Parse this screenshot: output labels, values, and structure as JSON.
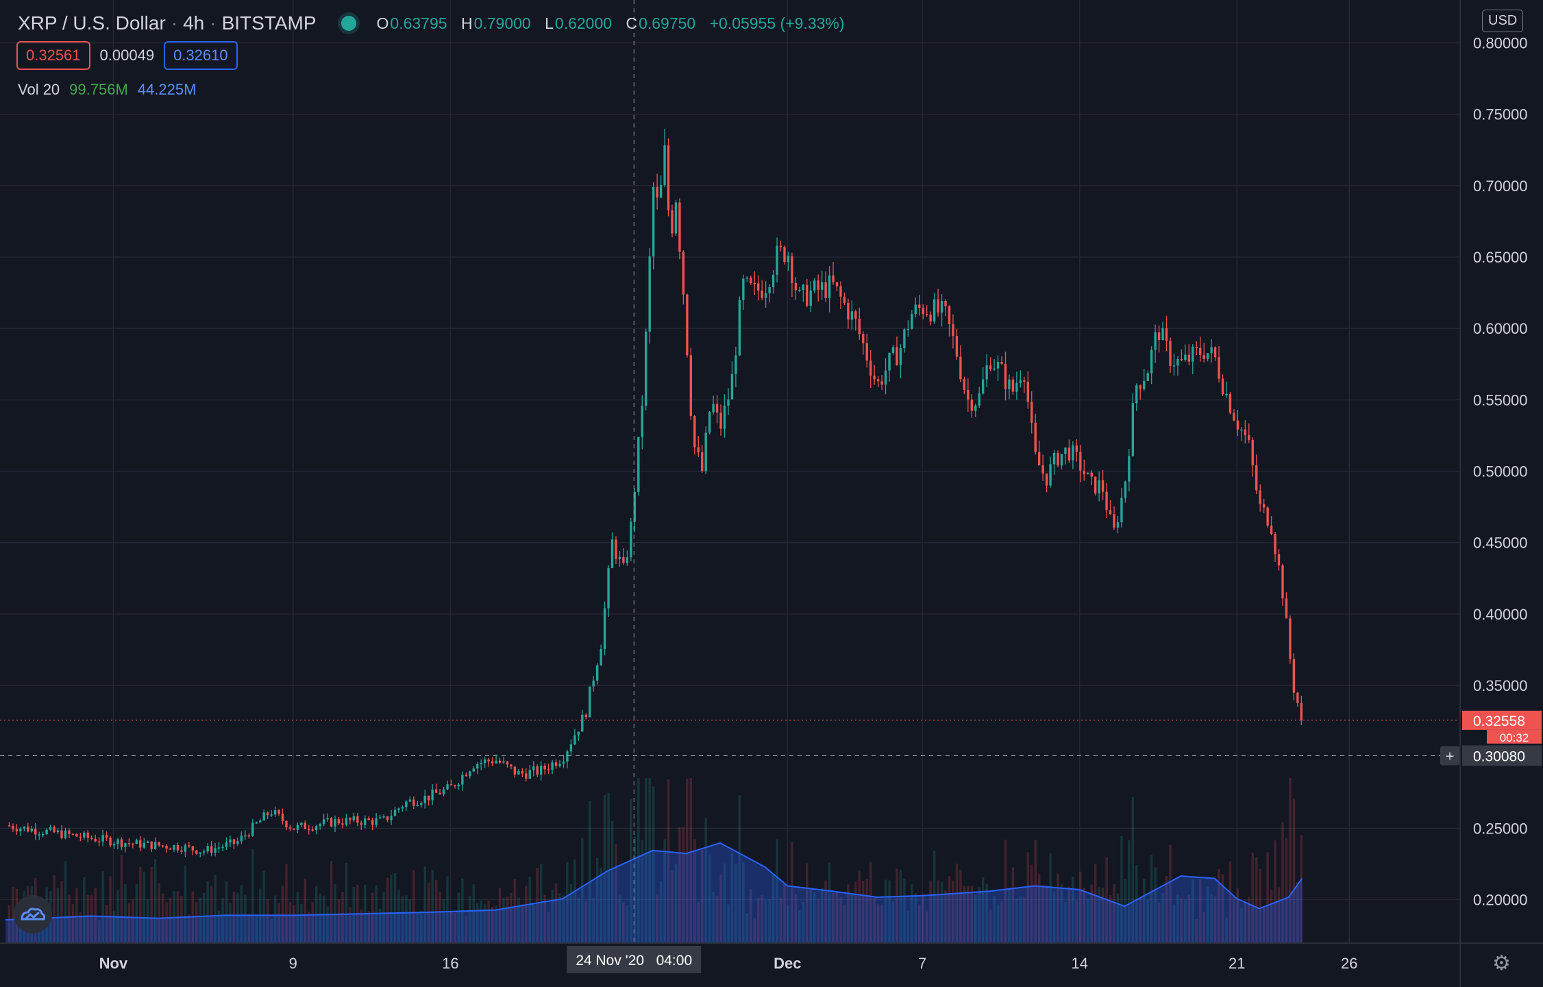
{
  "header": {
    "symbol": "XRP / U.S. Dollar",
    "interval": "4h",
    "exchange": "BITSTAMP",
    "open_label": "O",
    "open_value": "0.63795",
    "high_label": "H",
    "high_value": "0.79000",
    "low_label": "L",
    "low_value": "0.62000",
    "close_label": "C",
    "close_value": "0.69750",
    "change": "+0.05955 (+9.33%)"
  },
  "trade": {
    "sell": "0.32561",
    "spread": "0.00049",
    "buy": "0.32610"
  },
  "volume_legend": {
    "label": "Vol 20",
    "value_green": "99.756M",
    "value_blue": "44.225M"
  },
  "currency_button": "USD",
  "price_labels": {
    "last": "0.32558",
    "countdown": "00:32",
    "crosshair": "0.30080",
    "crosshair_plus": "+"
  },
  "crosshair_time_label": "24 Nov '20   04:00",
  "icons": {
    "logo": "tradingview-logo-icon",
    "settings": "gear-icon",
    "status": "market-status-dot-icon"
  },
  "colors": {
    "up": "#26a69a",
    "down": "#ef5350",
    "volume_ma": "#2962ff",
    "background": "#131722"
  },
  "chart_data": {
    "type": "candlestick",
    "title": "XRP / U.S. Dollar · 4h · BITSTAMP",
    "y_axis": {
      "ticks": [
        "0.80000",
        "0.75000",
        "0.70000",
        "0.65000",
        "0.60000",
        "0.55000",
        "0.50000",
        "0.45000",
        "0.40000",
        "0.35000",
        "0.25000",
        "0.20000"
      ],
      "range": [
        0.17,
        0.83
      ],
      "position": "right"
    },
    "x_axis": {
      "ticks": [
        "Nov",
        "9",
        "16",
        "Dec",
        "7",
        "14",
        "21",
        "26"
      ],
      "ticks_days": [
        1,
        9,
        16,
        31,
        37,
        44,
        51,
        56
      ],
      "day_unit": "calendar day (Nov 1 = 1; Dec 1 = 31)",
      "range_days": [
        -3.8,
        60.9
      ]
    },
    "grid": true,
    "volume_ma_value_at_cursor": "44.225M",
    "series": [
      {
        "name": "XRP/USD close (4h, approx. key points)",
        "points": [
          [
            -3.8,
            0.252
          ],
          [
            0,
            0.243
          ],
          [
            2,
            0.239
          ],
          [
            4,
            0.237
          ],
          [
            5,
            0.234
          ],
          [
            6.5,
            0.24
          ],
          [
            8,
            0.262
          ],
          [
            9,
            0.25
          ],
          [
            11,
            0.255
          ],
          [
            13,
            0.255
          ],
          [
            14,
            0.268
          ],
          [
            15,
            0.272
          ],
          [
            16,
            0.278
          ],
          [
            17,
            0.295
          ],
          [
            18,
            0.298
          ],
          [
            19,
            0.288
          ],
          [
            20,
            0.29
          ],
          [
            21,
            0.3
          ],
          [
            22,
            0.33
          ],
          [
            22.7,
            0.38
          ],
          [
            23.2,
            0.45
          ],
          [
            23.7,
            0.43
          ],
          [
            24,
            0.455
          ],
          [
            24.5,
            0.54
          ],
          [
            24.8,
            0.62
          ],
          [
            25,
            0.7
          ],
          [
            25.3,
            0.68
          ],
          [
            25.5,
            0.73
          ],
          [
            25.8,
            0.66
          ],
          [
            26,
            0.7
          ],
          [
            26.4,
            0.62
          ],
          [
            26.8,
            0.52
          ],
          [
            27.2,
            0.5
          ],
          [
            27.6,
            0.55
          ],
          [
            28,
            0.53
          ],
          [
            28.5,
            0.56
          ],
          [
            29,
            0.63
          ],
          [
            29.5,
            0.625
          ],
          [
            30,
            0.63
          ],
          [
            30.5,
            0.65
          ],
          [
            31,
            0.655
          ],
          [
            31.5,
            0.62
          ],
          [
            32,
            0.625
          ],
          [
            33,
            0.63
          ],
          [
            34,
            0.605
          ],
          [
            35,
            0.56
          ],
          [
            35.5,
            0.575
          ],
          [
            36,
            0.585
          ],
          [
            36.5,
            0.61
          ],
          [
            37,
            0.615
          ],
          [
            38,
            0.61
          ],
          [
            38.5,
            0.585
          ],
          [
            39,
            0.55
          ],
          [
            39.5,
            0.55
          ],
          [
            40,
            0.58
          ],
          [
            40.5,
            0.57
          ],
          [
            41,
            0.555
          ],
          [
            41.5,
            0.575
          ],
          [
            42,
            0.51
          ],
          [
            42.5,
            0.495
          ],
          [
            43,
            0.51
          ],
          [
            43.5,
            0.515
          ],
          [
            44,
            0.505
          ],
          [
            44.5,
            0.49
          ],
          [
            45,
            0.49
          ],
          [
            45.5,
            0.455
          ],
          [
            46,
            0.49
          ],
          [
            46.5,
            0.56
          ],
          [
            47,
            0.57
          ],
          [
            47.5,
            0.6
          ],
          [
            48,
            0.58
          ],
          [
            48.5,
            0.575
          ],
          [
            49,
            0.58
          ],
          [
            49.5,
            0.585
          ],
          [
            50,
            0.58
          ],
          [
            50.5,
            0.555
          ],
          [
            51,
            0.535
          ],
          [
            51.5,
            0.52
          ],
          [
            52,
            0.475
          ],
          [
            52.5,
            0.465
          ],
          [
            53,
            0.42
          ],
          [
            53.5,
            0.35
          ],
          [
            53.9,
            0.32558
          ]
        ]
      },
      {
        "name": "Volume MA 20",
        "points": [
          [
            -3.8,
            0.03
          ],
          [
            0,
            0.035
          ],
          [
            3,
            0.032
          ],
          [
            6,
            0.036
          ],
          [
            9,
            0.036
          ],
          [
            12,
            0.038
          ],
          [
            15,
            0.04
          ],
          [
            18,
            0.043
          ],
          [
            21,
            0.058
          ],
          [
            23,
            0.095
          ],
          [
            25,
            0.122
          ],
          [
            26.5,
            0.118
          ],
          [
            28,
            0.132
          ],
          [
            30,
            0.1
          ],
          [
            31,
            0.075
          ],
          [
            33,
            0.068
          ],
          [
            35,
            0.06
          ],
          [
            37,
            0.062
          ],
          [
            40,
            0.068
          ],
          [
            42,
            0.075
          ],
          [
            44,
            0.07
          ],
          [
            46,
            0.048
          ],
          [
            47.5,
            0.072
          ],
          [
            48.5,
            0.088
          ],
          [
            50,
            0.085
          ],
          [
            51,
            0.058
          ],
          [
            52,
            0.045
          ],
          [
            53.3,
            0.06
          ],
          [
            53.9,
            0.085
          ]
        ]
      }
    ]
  }
}
